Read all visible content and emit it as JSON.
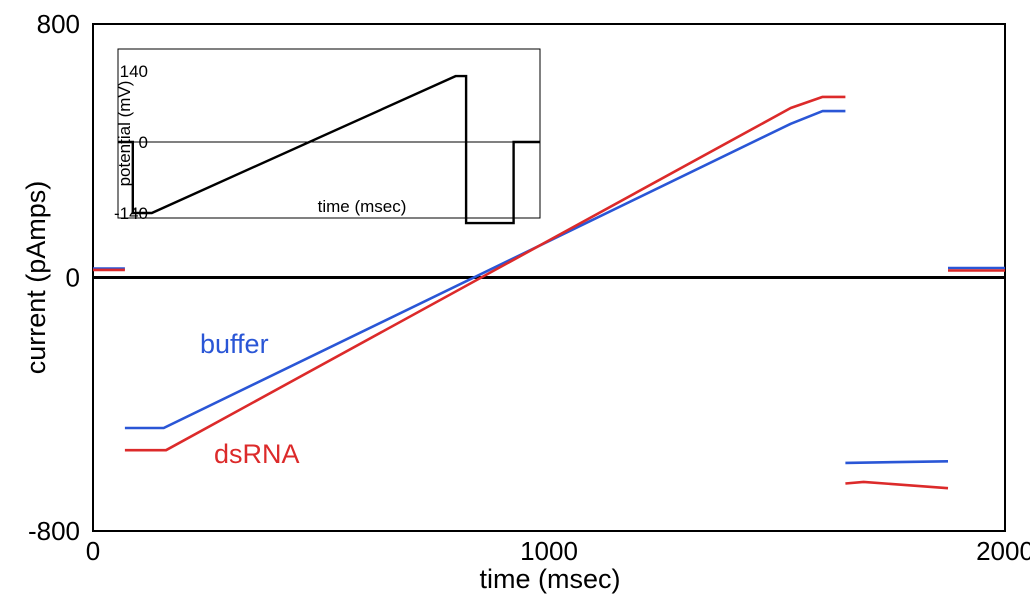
{
  "chart_data": [
    {
      "type": "line",
      "title": "",
      "xlabel": "time (msec)",
      "ylabel": "current (pAmps)",
      "xlim": [
        0,
        2000
      ],
      "ylim": [
        -800,
        800
      ],
      "x_ticks": [
        "0",
        "1000",
        "2000"
      ],
      "y_ticks": [
        "800",
        "0",
        "-800"
      ],
      "grid": false,
      "zero_line": true,
      "series": [
        {
          "name": "buffer",
          "color": "#2a56d6",
          "segments": [
            {
              "x": [
                0,
                70
              ],
              "y": [
                28,
                28
              ]
            },
            {
              "x": [
                70,
                155,
                1530,
                1600,
                1650
              ],
              "y": [
                -475,
                -475,
                485,
                525,
                525
              ]
            },
            {
              "x": [
                1650,
                1875
              ],
              "y": [
                -585,
                -580
              ]
            },
            {
              "x": [
                1875,
                2000
              ],
              "y": [
                30,
                30
              ]
            }
          ]
        },
        {
          "name": "dsRNA",
          "color": "#dc2a2a",
          "segments": [
            {
              "x": [
                0,
                70
              ],
              "y": [
                24,
                24
              ]
            },
            {
              "x": [
                70,
                160,
                1530,
                1600,
                1650
              ],
              "y": [
                -545,
                -545,
                535,
                570,
                570
              ]
            },
            {
              "x": [
                1650,
                1690,
                1875
              ],
              "y": [
                -650,
                -645,
                -665
              ]
            },
            {
              "x": [
                1875,
                2000
              ],
              "y": [
                22,
                22
              ]
            }
          ]
        }
      ]
    },
    {
      "type": "line",
      "title": "",
      "xlabel": "time (msec)",
      "ylabel": "potential (mV)",
      "xlim": [
        0,
        2000
      ],
      "ylim": [
        -140,
        140
      ],
      "y_ticks": [
        "140",
        "0",
        "-140"
      ],
      "zero_line": true,
      "series": [
        {
          "name": "",
          "color": "#000000",
          "segments": [
            {
              "x": [
                0,
                70,
                70,
                160,
                1600,
                1650,
                1650,
                1875,
                1875,
                2000
              ],
              "y": [
                0,
                0,
                -140,
                -140,
                130,
                130,
                -160,
                -160,
                0,
                0
              ]
            }
          ]
        }
      ]
    }
  ],
  "legend_labels": {
    "buffer": "buffer",
    "dsRNA": "dsRNA"
  }
}
